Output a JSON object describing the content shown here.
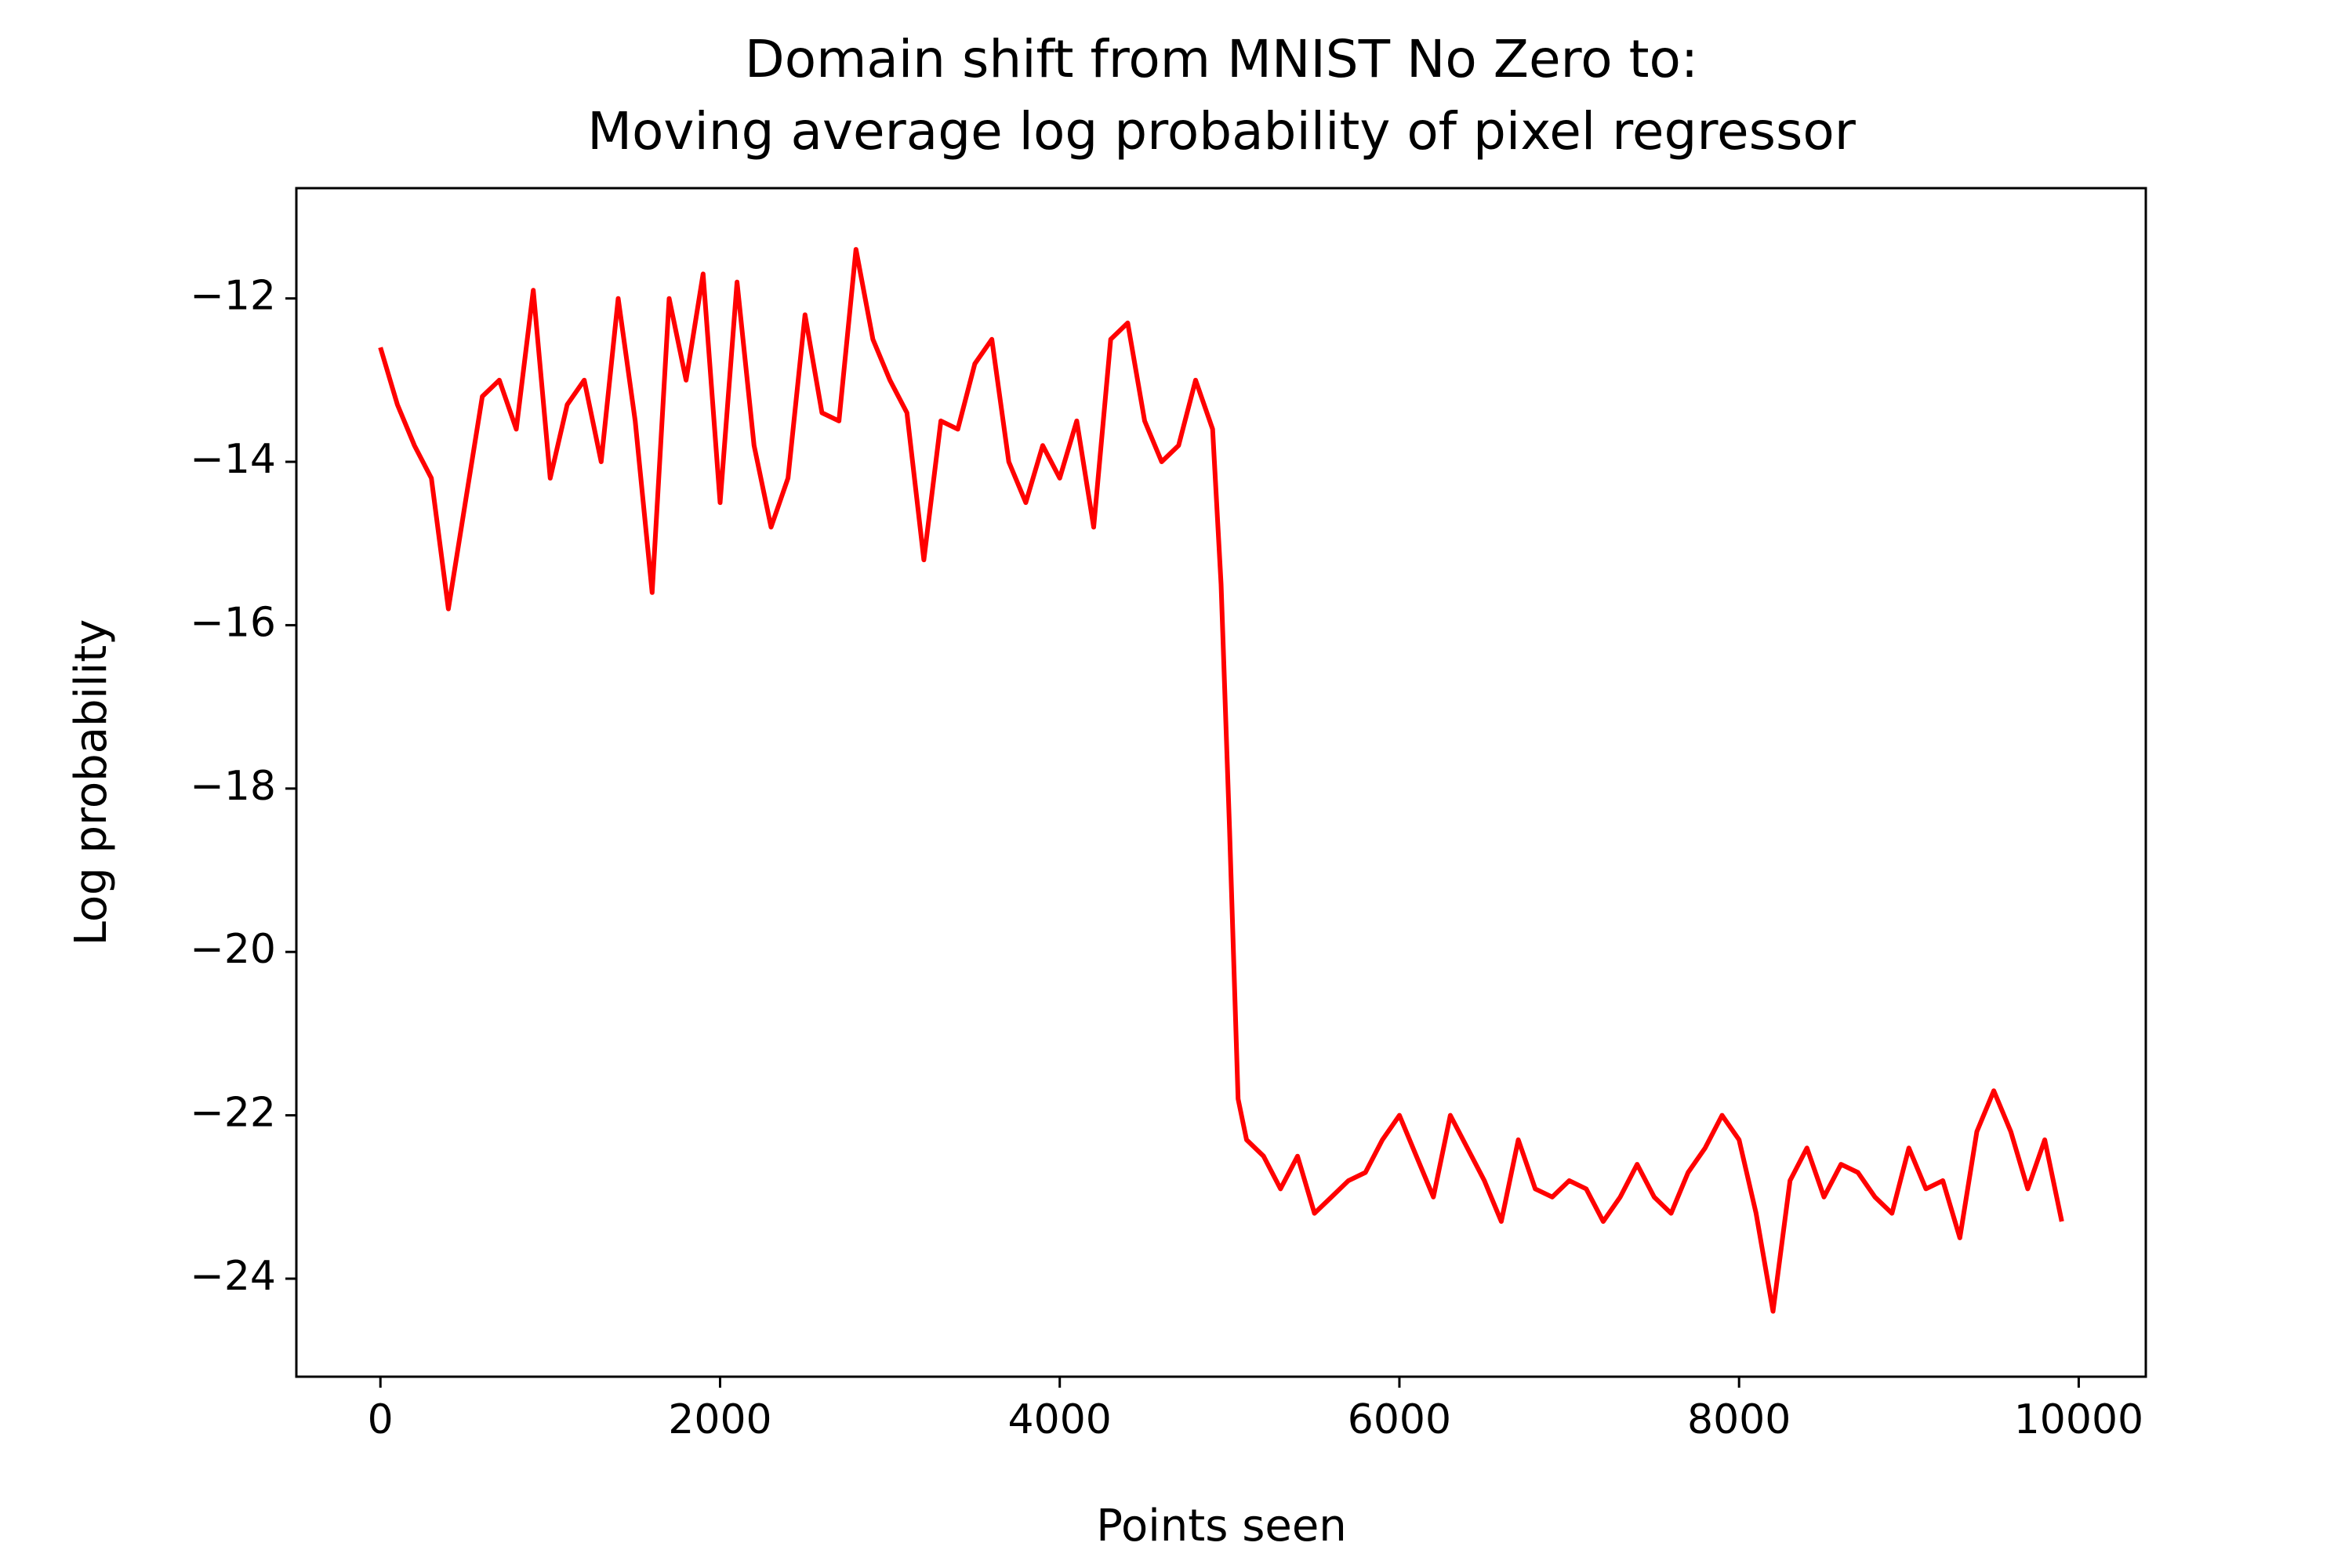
{
  "chart_data": {
    "type": "line",
    "title": [
      "Domain shift from MNIST No Zero to:",
      "Moving average log probability of pixel regressor"
    ],
    "xlabel": "Points seen",
    "ylabel": "Log probability",
    "x": [
      0,
      100,
      200,
      300,
      400,
      500,
      600,
      700,
      800,
      900,
      1000,
      1100,
      1200,
      1300,
      1400,
      1500,
      1600,
      1700,
      1800,
      1900,
      2000,
      2100,
      2200,
      2300,
      2400,
      2500,
      2600,
      2700,
      2800,
      2900,
      3000,
      3100,
      3200,
      3300,
      3400,
      3500,
      3600,
      3700,
      3800,
      3900,
      4000,
      4100,
      4200,
      4300,
      4400,
      4500,
      4600,
      4700,
      4800,
      4900,
      4950,
      5000,
      5050,
      5100,
      5200,
      5300,
      5400,
      5500,
      5600,
      5700,
      5800,
      5900,
      6000,
      6100,
      6200,
      6300,
      6400,
      6500,
      6600,
      6700,
      6800,
      6900,
      7000,
      7100,
      7200,
      7300,
      7400,
      7500,
      7600,
      7700,
      7800,
      7900,
      8000,
      8100,
      8200,
      8300,
      8400,
      8500,
      8600,
      8700,
      8800,
      8900,
      9000,
      9100,
      9200,
      9300,
      9400,
      9500,
      9600,
      9700,
      9800,
      9900
    ],
    "series": [
      {
        "name": "Log probability",
        "color": "#ff0000",
        "values": [
          -12.6,
          -13.3,
          -13.8,
          -14.2,
          -15.8,
          -14.5,
          -13.2,
          -13.0,
          -13.6,
          -11.9,
          -14.2,
          -13.3,
          -13.0,
          -14.0,
          -12.0,
          -13.5,
          -15.6,
          -12.0,
          -13.0,
          -11.7,
          -14.5,
          -11.8,
          -13.8,
          -14.8,
          -14.2,
          -12.2,
          -13.4,
          -13.5,
          -11.4,
          -12.5,
          -13.0,
          -13.4,
          -15.2,
          -13.5,
          -13.6,
          -12.8,
          -12.5,
          -14.0,
          -14.5,
          -13.8,
          -14.2,
          -13.5,
          -14.8,
          -12.5,
          -12.3,
          -13.5,
          -14.0,
          -13.8,
          -13.0,
          -13.6,
          -15.5,
          -18.5,
          -21.8,
          -22.3,
          -22.5,
          -22.9,
          -22.5,
          -23.2,
          -23.0,
          -22.8,
          -22.7,
          -22.3,
          -22.0,
          -22.5,
          -23.0,
          -22.0,
          -22.4,
          -22.8,
          -23.3,
          -22.3,
          -22.9,
          -23.0,
          -22.8,
          -22.9,
          -23.3,
          -23.0,
          -22.6,
          -23.0,
          -23.2,
          -22.7,
          -22.4,
          -22.0,
          -22.3,
          -23.2,
          -24.4,
          -22.8,
          -22.4,
          -23.0,
          -22.6,
          -22.7,
          -23.0,
          -23.2,
          -22.4,
          -22.9,
          -22.8,
          -23.5,
          -22.2,
          -21.7,
          -22.2,
          -22.9,
          -22.3,
          -23.3
        ]
      }
    ],
    "xlim": [
      -495,
      10395
    ],
    "ylim": [
      -25.2,
      -10.65
    ],
    "xticks": [
      0,
      2000,
      4000,
      6000,
      8000,
      10000
    ],
    "yticks": [
      {
        "value": -12,
        "label": "−12"
      },
      {
        "value": -14,
        "label": "−14"
      },
      {
        "value": -16,
        "label": "−16"
      },
      {
        "value": -18,
        "label": "−18"
      },
      {
        "value": -20,
        "label": "−20"
      },
      {
        "value": -22,
        "label": "−22"
      },
      {
        "value": -24,
        "label": "−24"
      }
    ],
    "grid": false
  }
}
